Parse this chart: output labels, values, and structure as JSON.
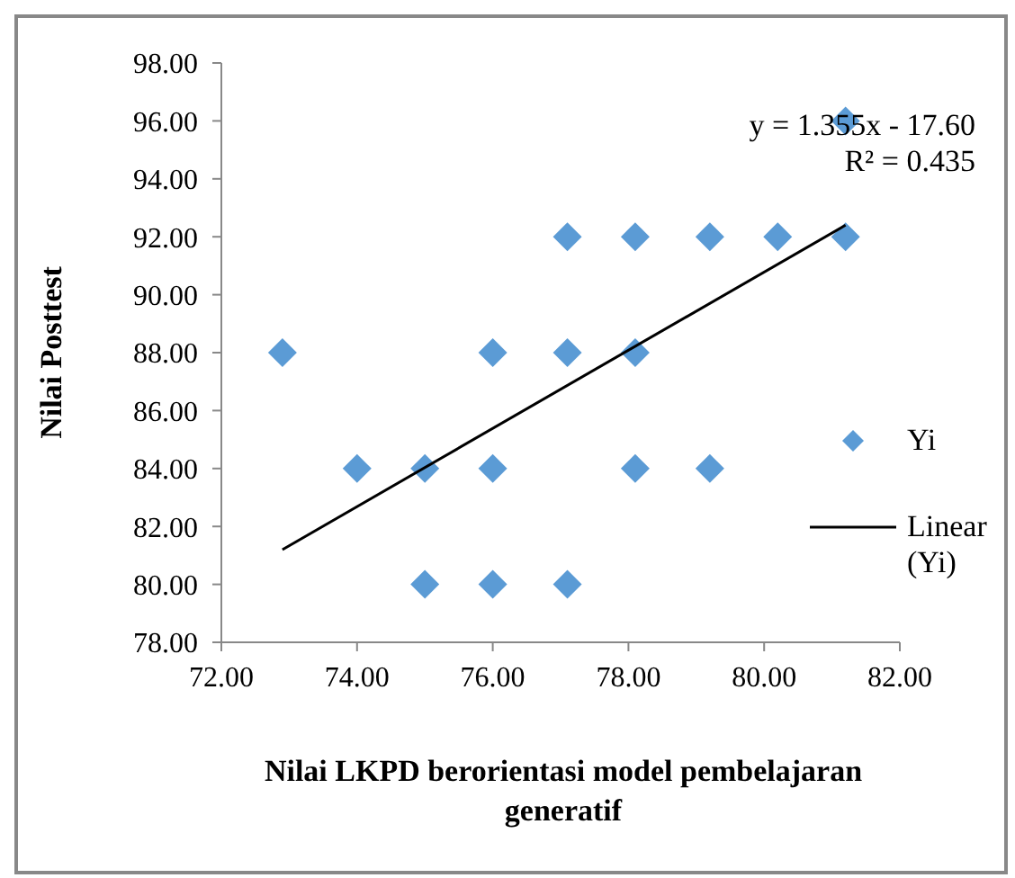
{
  "chart_data": {
    "type": "scatter",
    "xlabel": "Nilai LKPD berorientasi model pembelajaran generatif",
    "ylabel": "Nilai Posttest",
    "annotations": [
      "y = 1.355x - 17.60",
      "R² = 0.435"
    ],
    "xlim": [
      72,
      82
    ],
    "xticks": [
      {
        "value": 72,
        "label": "72.00"
      },
      {
        "value": 74,
        "label": "74.00"
      },
      {
        "value": 76,
        "label": "76.00"
      },
      {
        "value": 78,
        "label": "78.00"
      },
      {
        "value": 80,
        "label": "80.00"
      },
      {
        "value": 82,
        "label": "82.00"
      }
    ],
    "ylim": [
      78,
      98
    ],
    "yticks": [
      {
        "value": 78,
        "label": "78.00"
      },
      {
        "value": 80,
        "label": "80.00"
      },
      {
        "value": 82,
        "label": "82.00"
      },
      {
        "value": 84,
        "label": "84.00"
      },
      {
        "value": 86,
        "label": "86.00"
      },
      {
        "value": 88,
        "label": "88.00"
      },
      {
        "value": 90,
        "label": "90.00"
      },
      {
        "value": 92,
        "label": "92.00"
      },
      {
        "value": 94,
        "label": "94.00"
      },
      {
        "value": 96,
        "label": "96.00"
      },
      {
        "value": 98,
        "label": "98.00"
      }
    ],
    "grid": false,
    "legend": "right",
    "series": [
      {
        "name": "Yi",
        "marker": "diamond",
        "color": "#5b9bd5",
        "x": [
          72.9,
          74.0,
          75.0,
          75.0,
          76.0,
          76.0,
          76.0,
          77.1,
          77.1,
          77.1,
          78.1,
          78.1,
          78.1,
          79.2,
          79.2,
          80.2,
          81.2,
          81.2
        ],
        "values": [
          88,
          84,
          84,
          80,
          88,
          84,
          80,
          92,
          88,
          80,
          92,
          88,
          84,
          92,
          84,
          92,
          96,
          92
        ]
      },
      {
        "name": "Linear (Yi)",
        "type": "line",
        "marker": "none",
        "color": "#000000",
        "x": [
          72.9,
          81.2
        ],
        "values": [
          81.2,
          92.4
        ]
      }
    ]
  }
}
